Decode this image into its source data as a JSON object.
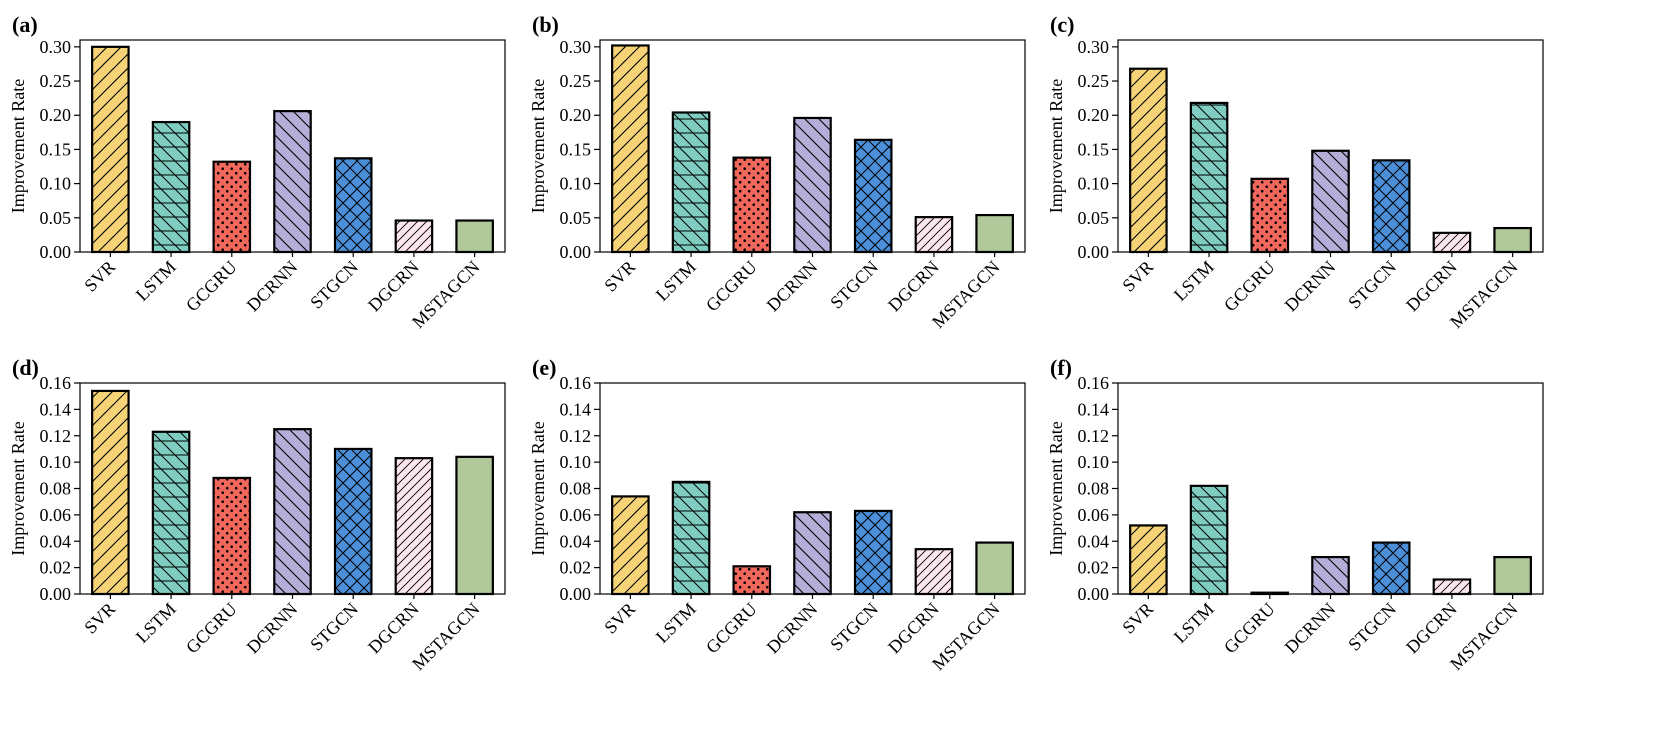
{
  "chart_data": [
    {
      "panel_label": "(a)",
      "type": "bar",
      "ylabel": "Improvement Rate",
      "ylim": [
        0,
        0.31
      ],
      "yticks": [
        "0.00",
        "0.05",
        "0.10",
        "0.15",
        "0.20",
        "0.25",
        "0.30"
      ],
      "tick_values": [
        0,
        0.05,
        0.1,
        0.15,
        0.2,
        0.25,
        0.3
      ],
      "categories": [
        "SVR",
        "LSTM",
        "GCGRU",
        "DCRNN",
        "STGCN",
        "DGCRN",
        "MSTAGCN"
      ],
      "values": [
        0.3,
        0.19,
        0.132,
        0.206,
        0.137,
        0.046,
        0.046
      ]
    },
    {
      "panel_label": "(b)",
      "type": "bar",
      "ylabel": "Improvement Rate",
      "ylim": [
        0,
        0.31
      ],
      "yticks": [
        "0.00",
        "0.05",
        "0.10",
        "0.15",
        "0.20",
        "0.25",
        "0.30"
      ],
      "tick_values": [
        0,
        0.05,
        0.1,
        0.15,
        0.2,
        0.25,
        0.3
      ],
      "categories": [
        "SVR",
        "LSTM",
        "GCGRU",
        "DCRNN",
        "STGCN",
        "DGCRN",
        "MSTAGCN"
      ],
      "values": [
        0.302,
        0.204,
        0.138,
        0.196,
        0.164,
        0.051,
        0.054
      ]
    },
    {
      "panel_label": "(c)",
      "type": "bar",
      "ylabel": "Improvement Rate",
      "ylim": [
        0,
        0.31
      ],
      "yticks": [
        "0.00",
        "0.05",
        "0.10",
        "0.15",
        "0.20",
        "0.25",
        "0.30"
      ],
      "tick_values": [
        0,
        0.05,
        0.1,
        0.15,
        0.2,
        0.25,
        0.3
      ],
      "categories": [
        "SVR",
        "LSTM",
        "GCGRU",
        "DCRNN",
        "STGCN",
        "DGCRN",
        "MSTAGCN"
      ],
      "values": [
        0.268,
        0.218,
        0.107,
        0.148,
        0.134,
        0.028,
        0.035
      ]
    },
    {
      "panel_label": "(d)",
      "type": "bar",
      "ylabel": "Improvement Rate",
      "ylim": [
        0,
        0.16
      ],
      "yticks": [
        "0.00",
        "0.02",
        "0.04",
        "0.06",
        "0.08",
        "0.10",
        "0.12",
        "0.14",
        "0.16"
      ],
      "tick_values": [
        0,
        0.02,
        0.04,
        0.06,
        0.08,
        0.1,
        0.12,
        0.14,
        0.16
      ],
      "categories": [
        "SVR",
        "LSTM",
        "GCGRU",
        "DCRNN",
        "STGCN",
        "DGCRN",
        "MSTAGCN"
      ],
      "values": [
        0.154,
        0.123,
        0.088,
        0.125,
        0.11,
        0.103,
        0.104
      ]
    },
    {
      "panel_label": "(e)",
      "type": "bar",
      "ylabel": "Improvement Rate",
      "ylim": [
        0,
        0.16
      ],
      "yticks": [
        "0.00",
        "0.02",
        "0.04",
        "0.06",
        "0.08",
        "0.10",
        "0.12",
        "0.14",
        "0.16"
      ],
      "tick_values": [
        0,
        0.02,
        0.04,
        0.06,
        0.08,
        0.1,
        0.12,
        0.14,
        0.16
      ],
      "categories": [
        "SVR",
        "LSTM",
        "GCGRU",
        "DCRNN",
        "STGCN",
        "DGCRN",
        "MSTAGCN"
      ],
      "values": [
        0.074,
        0.085,
        0.021,
        0.062,
        0.063,
        0.034,
        0.039
      ]
    },
    {
      "panel_label": "(f)",
      "type": "bar",
      "ylabel": "Improvement Rate",
      "ylim": [
        0,
        0.16
      ],
      "yticks": [
        "0.00",
        "0.02",
        "0.04",
        "0.06",
        "0.08",
        "0.10",
        "0.12",
        "0.14",
        "0.16"
      ],
      "tick_values": [
        0,
        0.02,
        0.04,
        0.06,
        0.08,
        0.1,
        0.12,
        0.14,
        0.16
      ],
      "categories": [
        "SVR",
        "LSTM",
        "GCGRU",
        "DCRNN",
        "STGCN",
        "DGCRN",
        "MSTAGCN"
      ],
      "values": [
        0.052,
        0.082,
        0.001,
        0.028,
        0.039,
        0.011,
        0.028
      ]
    }
  ],
  "style": {
    "bar_colors": [
      "#F5D376",
      "#7FCDC0",
      "#F1675C",
      "#B3AFD8",
      "#4A8FD8",
      "#FBE5EE",
      "#B0C89A"
    ],
    "bar_patterns": [
      "slash",
      "backslash-horizontal",
      "dots",
      "backslash",
      "crosshatch",
      "slash-thin",
      "none"
    ]
  }
}
